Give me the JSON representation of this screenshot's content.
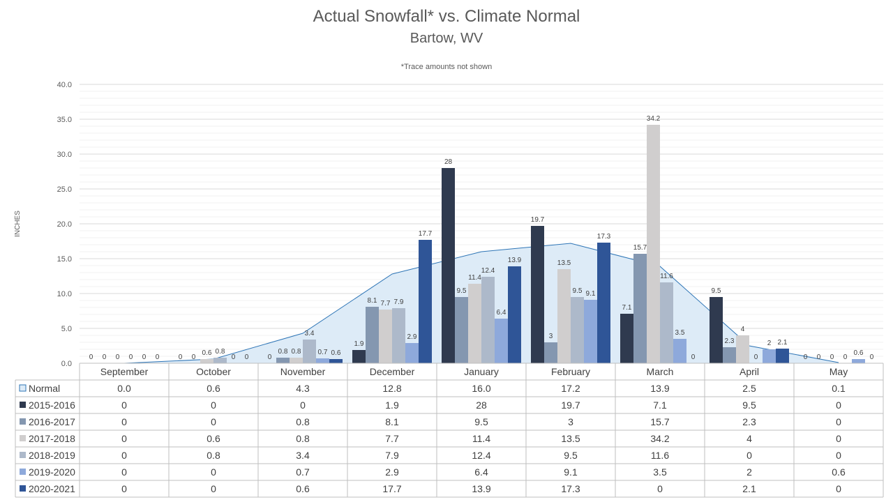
{
  "chart_data": {
    "type": "bar",
    "title": "Actual Snowfall* vs. Climate Normal",
    "subtitle": "Bartow, WV",
    "note": "*Trace amounts not shown",
    "ylabel": "INCHES",
    "ylim": [
      0,
      40
    ],
    "yticks": [
      "0.0",
      "5.0",
      "10.0",
      "15.0",
      "20.0",
      "25.0",
      "30.0",
      "35.0",
      "40.0"
    ],
    "grid": true,
    "categories": [
      "September",
      "October",
      "November",
      "December",
      "January",
      "February",
      "March",
      "April",
      "May"
    ],
    "normal": {
      "name": "Normal",
      "chart_type": "area",
      "color": "#DDEBF7",
      "line_color": "#2E75B6",
      "values": [
        0.0,
        0.6,
        4.3,
        12.8,
        16.0,
        17.2,
        13.9,
        2.5,
        0.1
      ],
      "table_values": [
        "0.0",
        "0.6",
        "4.3",
        "12.8",
        "16.0",
        "17.2",
        "13.9",
        "2.5",
        "0.1"
      ]
    },
    "series": [
      {
        "name": "2015-2016",
        "color": "#2F3A4F",
        "values": [
          0,
          0,
          0,
          1.9,
          28,
          19.7,
          7.1,
          9.5,
          0
        ],
        "labels": [
          "0",
          "0",
          "0",
          "1.9",
          "28",
          "19.7",
          "7.1",
          "9.5",
          "0"
        ]
      },
      {
        "name": "2016-2017",
        "color": "#8497B0",
        "values": [
          0,
          0,
          0.8,
          8.1,
          9.5,
          3,
          15.7,
          2.3,
          0
        ],
        "labels": [
          "0",
          "0",
          "0.8",
          "8.1",
          "9.5",
          "3",
          "15.7",
          "2.3",
          "0"
        ]
      },
      {
        "name": "2017-2018",
        "color": "#D0CECE",
        "values": [
          0,
          0.6,
          0.8,
          7.7,
          11.4,
          13.5,
          34.2,
          4,
          0
        ],
        "labels": [
          "0",
          "0.6",
          "0.8",
          "7.7",
          "11.4",
          "13.5",
          "34.2",
          "4",
          "0"
        ]
      },
      {
        "name": "2018-2019",
        "color": "#ADB9CA",
        "values": [
          0,
          0.8,
          3.4,
          7.9,
          12.4,
          9.5,
          11.6,
          0,
          0
        ],
        "labels": [
          "0",
          "0.8",
          "3.4",
          "7.9",
          "12.4",
          "9.5",
          "11.6",
          "0",
          "0"
        ]
      },
      {
        "name": "2019-2020",
        "color": "#8EA9DB",
        "values": [
          0,
          0,
          0.7,
          2.9,
          6.4,
          9.1,
          3.5,
          2,
          0.6
        ],
        "labels": [
          "0",
          "0",
          "0.7",
          "2.9",
          "6.4",
          "9.1",
          "3.5",
          "2",
          "0.6"
        ]
      },
      {
        "name": "2020-2021",
        "color": "#2F5597",
        "values": [
          0,
          0,
          0.6,
          17.7,
          13.9,
          17.3,
          0,
          2.1,
          0
        ],
        "labels": [
          "0",
          "0",
          "0.6",
          "17.7",
          "13.9",
          "17.3",
          "0",
          "2.1",
          "0"
        ]
      }
    ]
  }
}
